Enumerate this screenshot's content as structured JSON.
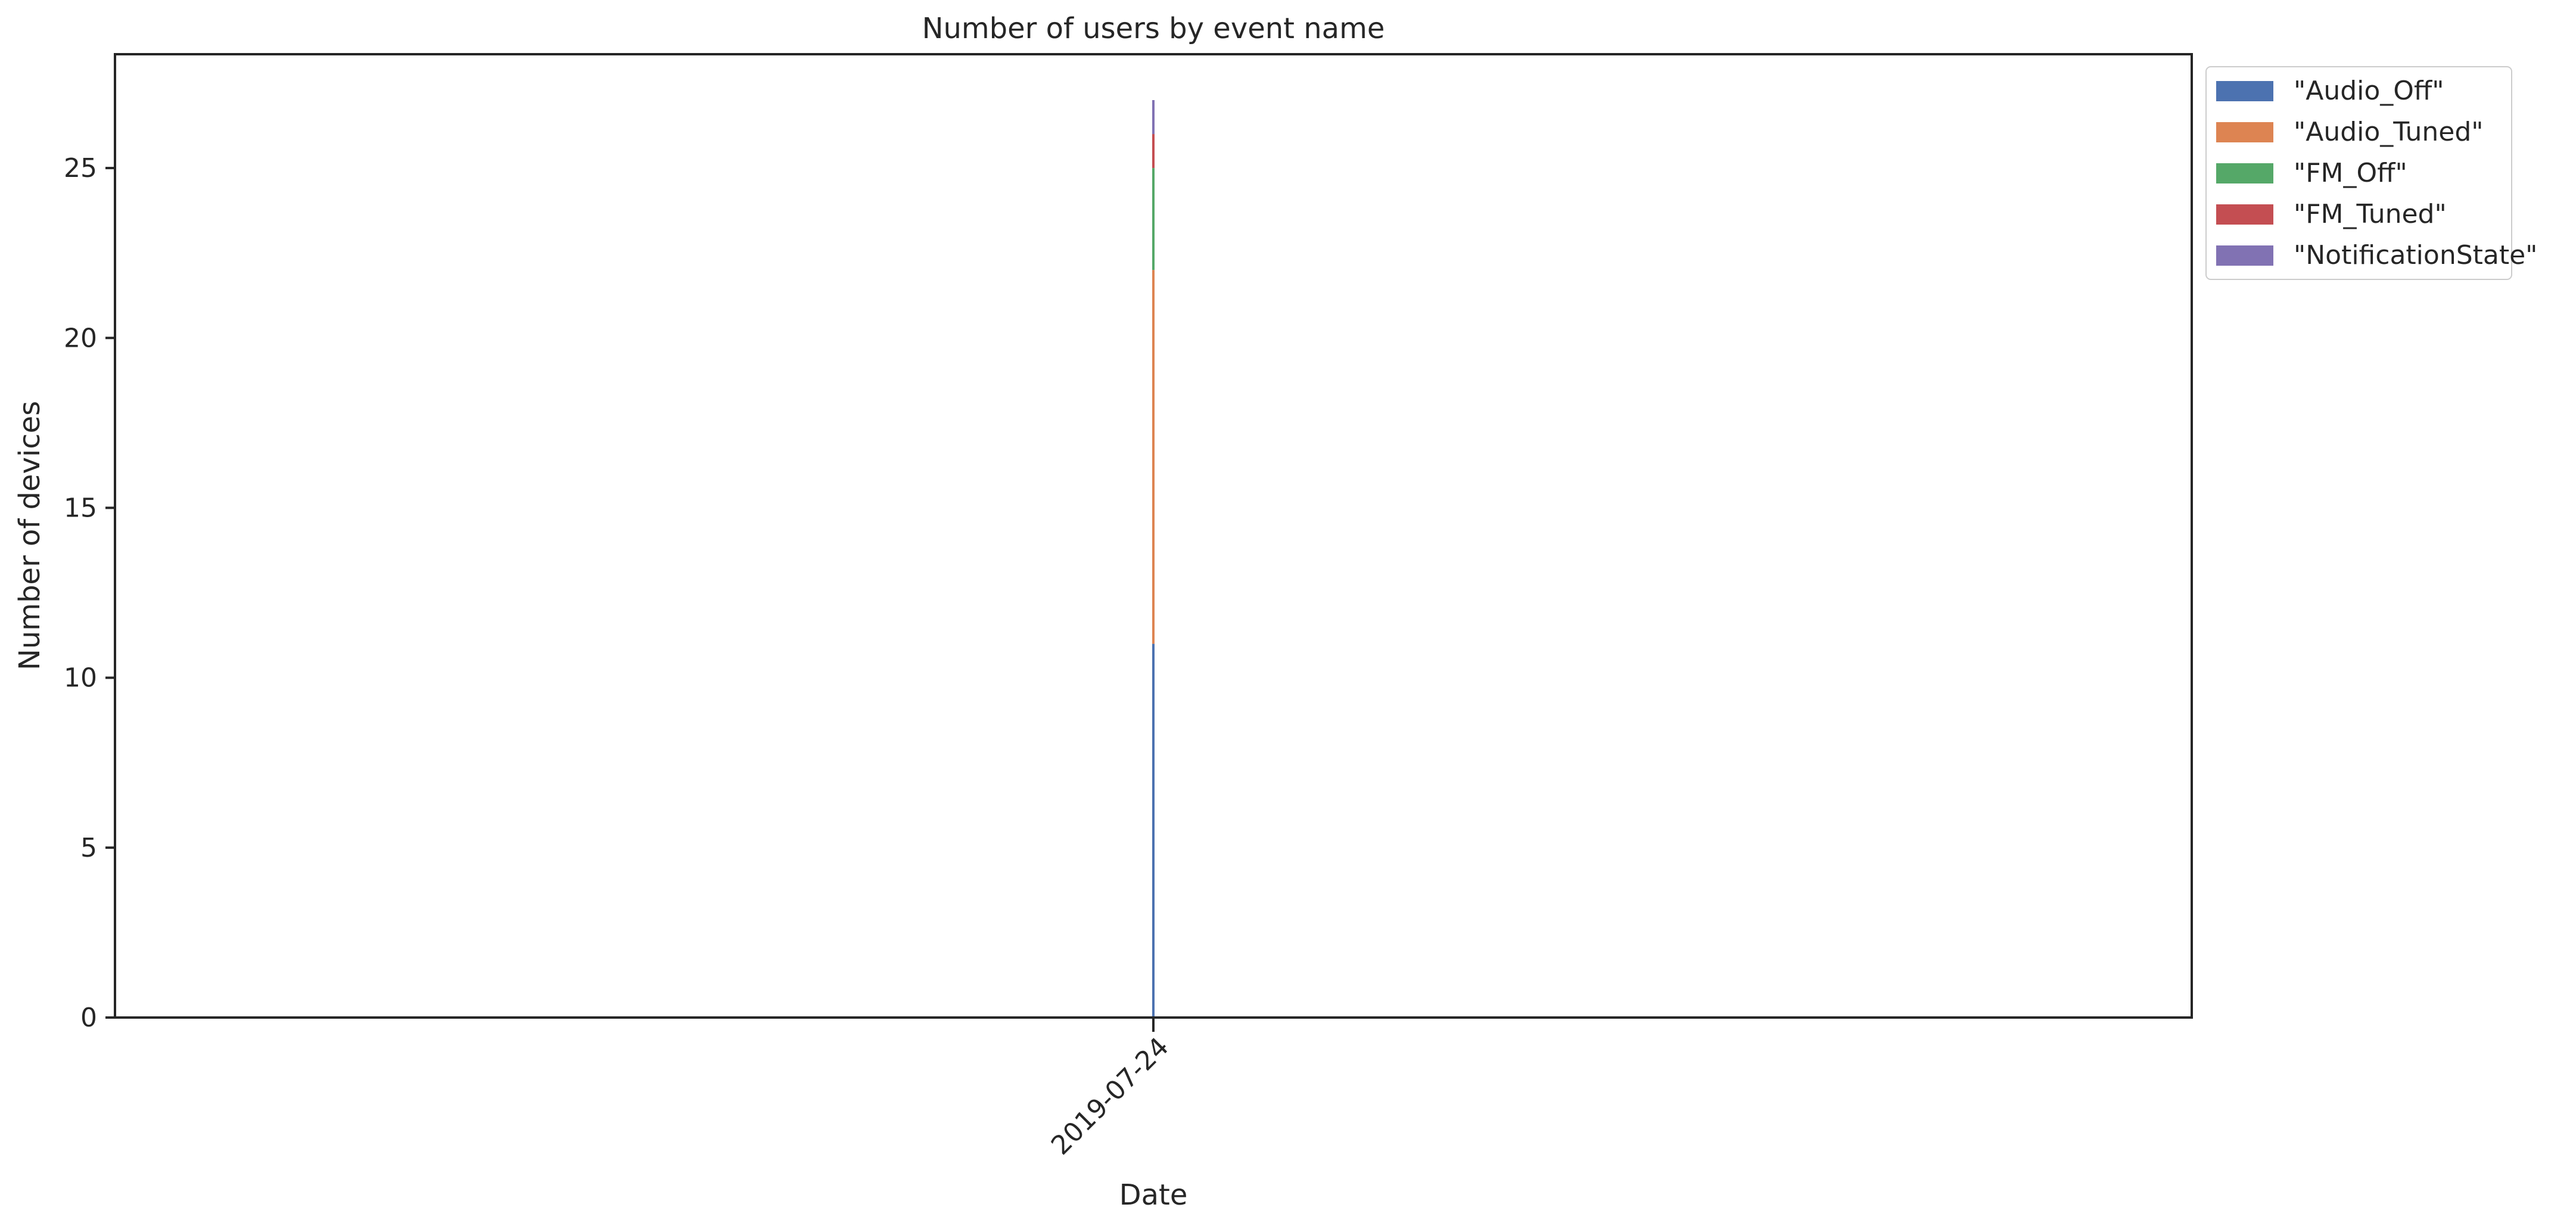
{
  "chart_data": {
    "type": "area",
    "stacked": true,
    "title": "Number of users by event name",
    "xlabel": "Date",
    "ylabel": "Number of devices",
    "x": [
      "2019-07-24"
    ],
    "xtick_labels": [
      "2019-07-24"
    ],
    "ylim": [
      0,
      28.35
    ],
    "yticks": [
      0,
      5,
      10,
      15,
      20,
      25
    ],
    "grid": false,
    "legend_position": "outside-top-right",
    "series": [
      {
        "name": "\"Audio_Off\"",
        "values": [
          11
        ],
        "color": "#4c72b0"
      },
      {
        "name": "\"Audio_Tuned\"",
        "values": [
          11
        ],
        "color": "#dd8452"
      },
      {
        "name": "\"FM_Off\"",
        "values": [
          3
        ],
        "color": "#55a868"
      },
      {
        "name": "\"FM_Tuned\"",
        "values": [
          1
        ],
        "color": "#c44e52"
      },
      {
        "name": "\"NotificationState\"",
        "values": [
          1
        ],
        "color": "#8172b3"
      }
    ]
  }
}
